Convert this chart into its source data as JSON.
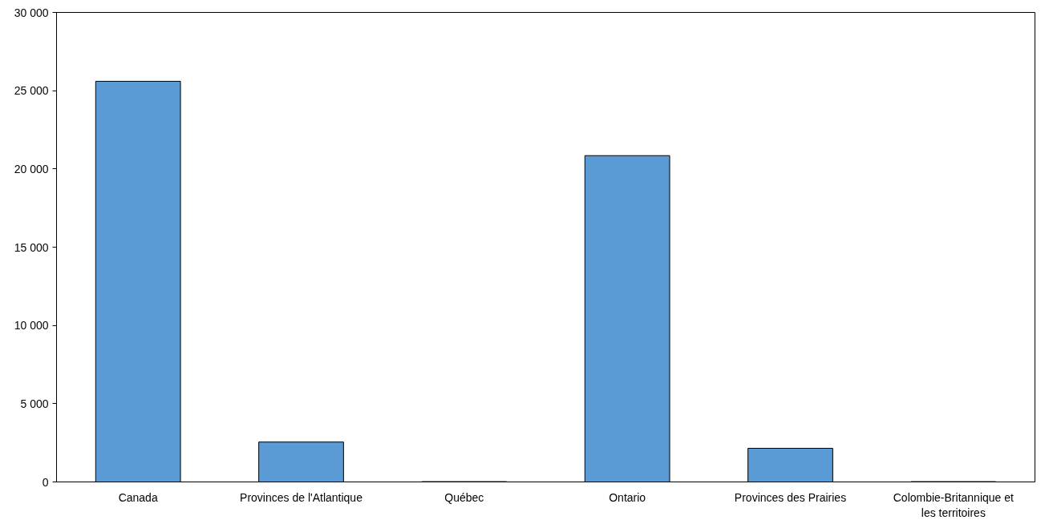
{
  "chart_data": {
    "type": "bar",
    "categories": [
      "Canada",
      "Provinces de l'Atlantique",
      "Québec",
      "Ontario",
      "Provinces des Prairies",
      "Colombie-Britannique et les territoires"
    ],
    "values": [
      25600,
      2550,
      20,
      20850,
      2150,
      20
    ],
    "color": "#5b9bd5",
    "ylim": [
      0,
      30000
    ],
    "yticks": [
      {
        "value": 0,
        "label": "0"
      },
      {
        "value": 5000,
        "label": "5 000"
      },
      {
        "value": 10000,
        "label": "10 000"
      },
      {
        "value": 15000,
        "label": "15 000"
      },
      {
        "value": 20000,
        "label": "20 000"
      },
      {
        "value": 25000,
        "label": "25 000"
      },
      {
        "value": 30000,
        "label": "30 000"
      }
    ],
    "grid": false
  }
}
